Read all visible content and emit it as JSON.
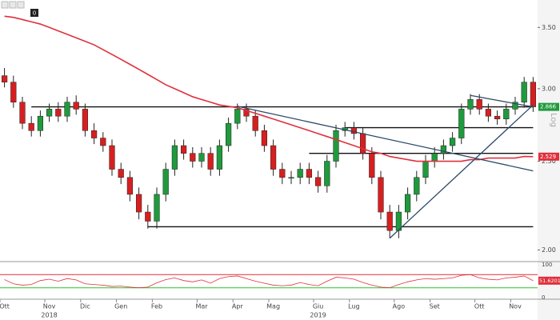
{
  "chart_data": {
    "type": "candlestick",
    "log_scale": true,
    "ylim": [
      1.95,
      3.75
    ],
    "yticks": [
      {
        "value": 2.0,
        "label": "2.00"
      },
      {
        "value": 2.5,
        "label": "2.50"
      },
      {
        "value": 3.0,
        "label": "3.00"
      },
      {
        "value": 3.5,
        "label": "3.50"
      }
    ],
    "scale_label": "Log",
    "toolbar_label": "0",
    "categories": [
      "Ott",
      null,
      null,
      null,
      null,
      "Nov",
      null,
      null,
      null,
      "Dic",
      null,
      null,
      null,
      "Gen",
      null,
      null,
      null,
      "Feb",
      null,
      null,
      null,
      null,
      "Mar",
      null,
      null,
      null,
      "Apr",
      null,
      null,
      null,
      "Mag",
      null,
      null,
      null,
      null,
      "Giu",
      null,
      null,
      null,
      "Lug",
      null,
      null,
      null,
      null,
      "Ago",
      null,
      null,
      null,
      "Set",
      null,
      null,
      null,
      null,
      "Ott",
      null,
      null,
      null,
      "Nov",
      null,
      null
    ],
    "year_categories": [
      null,
      null,
      null,
      null,
      null,
      "2018",
      null,
      null,
      null,
      null,
      null,
      null,
      null,
      null,
      null,
      null,
      null,
      null,
      null,
      null,
      null,
      null,
      null,
      null,
      null,
      null,
      null,
      null,
      null,
      null,
      null,
      null,
      null,
      null,
      null,
      "2019",
      null,
      null,
      null,
      null,
      null,
      null,
      null,
      null,
      null,
      null,
      null,
      null,
      null,
      null,
      null,
      null,
      null,
      null,
      null,
      null,
      null,
      null,
      null,
      null
    ],
    "open": [
      3.1,
      3.05,
      2.9,
      2.75,
      2.7,
      2.8,
      2.85,
      2.8,
      2.9,
      2.85,
      2.7,
      2.65,
      2.6,
      2.45,
      2.4,
      2.3,
      2.2,
      2.15,
      2.3,
      2.45,
      2.6,
      2.55,
      2.5,
      2.55,
      2.45,
      2.6,
      2.75,
      2.85,
      2.8,
      2.7,
      2.6,
      2.45,
      2.4,
      2.4,
      2.45,
      2.4,
      2.35,
      2.5,
      2.7,
      2.72,
      2.68,
      2.55,
      2.4,
      2.2,
      2.1,
      2.2,
      2.3,
      2.4,
      2.5,
      2.55,
      2.6,
      2.65,
      2.85,
      2.92,
      2.85,
      2.8,
      2.78,
      2.85,
      2.9,
      3.05
    ],
    "high": [
      3.16,
      3.1,
      2.94,
      2.8,
      2.84,
      2.89,
      2.9,
      2.94,
      2.95,
      2.89,
      2.75,
      2.69,
      2.64,
      2.49,
      2.44,
      2.34,
      2.24,
      2.34,
      2.49,
      2.64,
      2.64,
      2.59,
      2.59,
      2.59,
      2.64,
      2.79,
      2.89,
      2.89,
      2.84,
      2.74,
      2.64,
      2.49,
      2.44,
      2.49,
      2.49,
      2.44,
      2.54,
      2.74,
      2.76,
      2.76,
      2.72,
      2.59,
      2.44,
      2.24,
      2.24,
      2.34,
      2.44,
      2.54,
      2.59,
      2.64,
      2.69,
      2.89,
      2.96,
      2.96,
      2.89,
      2.84,
      2.89,
      2.94,
      3.09,
      3.09
    ],
    "low": [
      3.01,
      2.86,
      2.71,
      2.66,
      2.66,
      2.76,
      2.76,
      2.76,
      2.81,
      2.66,
      2.61,
      2.56,
      2.41,
      2.36,
      2.26,
      2.16,
      2.11,
      2.11,
      2.26,
      2.41,
      2.51,
      2.46,
      2.46,
      2.41,
      2.41,
      2.56,
      2.71,
      2.76,
      2.66,
      2.56,
      2.41,
      2.36,
      2.36,
      2.36,
      2.36,
      2.31,
      2.31,
      2.46,
      2.66,
      2.64,
      2.51,
      2.36,
      2.16,
      2.06,
      2.06,
      2.16,
      2.26,
      2.36,
      2.46,
      2.51,
      2.56,
      2.61,
      2.81,
      2.81,
      2.76,
      2.74,
      2.74,
      2.81,
      2.86,
      2.83
    ],
    "close": [
      3.05,
      2.9,
      2.75,
      2.7,
      2.8,
      2.85,
      2.8,
      2.9,
      2.85,
      2.7,
      2.65,
      2.6,
      2.45,
      2.4,
      2.3,
      2.2,
      2.15,
      2.3,
      2.45,
      2.6,
      2.55,
      2.5,
      2.55,
      2.45,
      2.6,
      2.75,
      2.85,
      2.8,
      2.7,
      2.6,
      2.45,
      2.4,
      2.4,
      2.45,
      2.4,
      2.35,
      2.5,
      2.7,
      2.72,
      2.68,
      2.55,
      2.4,
      2.2,
      2.1,
      2.2,
      2.3,
      2.4,
      2.5,
      2.55,
      2.6,
      2.65,
      2.85,
      2.92,
      2.85,
      2.8,
      2.78,
      2.85,
      2.9,
      3.05,
      2.866
    ],
    "up_color": "#1f9a3c",
    "down_color": "#d61f1f",
    "moving_average": {
      "color": "#e0303c",
      "values": [
        3.6,
        3.59,
        3.57,
        3.55,
        3.53,
        3.5,
        3.47,
        3.44,
        3.41,
        3.38,
        3.35,
        3.31,
        3.27,
        3.23,
        3.19,
        3.15,
        3.11,
        3.07,
        3.03,
        3.0,
        2.97,
        2.94,
        2.92,
        2.9,
        2.88,
        2.87,
        2.86,
        2.84,
        2.82,
        2.8,
        2.78,
        2.76,
        2.74,
        2.72,
        2.7,
        2.68,
        2.66,
        2.64,
        2.62,
        2.6,
        2.58,
        2.56,
        2.55,
        2.53,
        2.52,
        2.51,
        2.5,
        2.5,
        2.5,
        2.5,
        2.5,
        2.5,
        2.51,
        2.51,
        2.52,
        2.52,
        2.52,
        2.52,
        2.53,
        2.529
      ]
    },
    "levels": [
      {
        "value": 2.866,
        "from": 3,
        "to": 59
      },
      {
        "value": 2.72,
        "from": 38,
        "to": 59
      },
      {
        "value": 2.55,
        "from": 34,
        "to": 59
      },
      {
        "value": 2.12,
        "from": 16,
        "to": 59
      }
    ],
    "trendlines": [
      {
        "from": 26,
        "start": 2.87,
        "to": 59,
        "end": 2.44,
        "color": "#2c4a6a"
      },
      {
        "from": 43,
        "start": 2.06,
        "to": 59,
        "end": 2.88,
        "color": "#2c4a6a"
      },
      {
        "from": 52,
        "start": 2.95,
        "to": 59,
        "end": 2.866,
        "color": "#2c4a6a"
      }
    ],
    "rsi": {
      "ylim": [
        0,
        100
      ],
      "yticks": [
        0,
        100
      ],
      "bands": [
        {
          "value": 70,
          "color": "#e0303c"
        },
        {
          "value": 30,
          "color": "#2fbf2f"
        }
      ],
      "color": "#e0303c",
      "values": [
        55,
        42,
        38,
        40,
        52,
        56,
        50,
        58,
        54,
        42,
        40,
        38,
        34,
        35,
        32,
        30,
        32,
        45,
        55,
        60,
        52,
        48,
        54,
        44,
        58,
        64,
        66,
        58,
        50,
        44,
        38,
        36,
        38,
        46,
        40,
        36,
        50,
        62,
        60,
        56,
        46,
        38,
        32,
        30,
        40,
        48,
        54,
        58,
        56,
        58,
        60,
        68,
        70,
        60,
        56,
        54,
        60,
        62,
        66,
        51.6201
      ]
    }
  }
}
